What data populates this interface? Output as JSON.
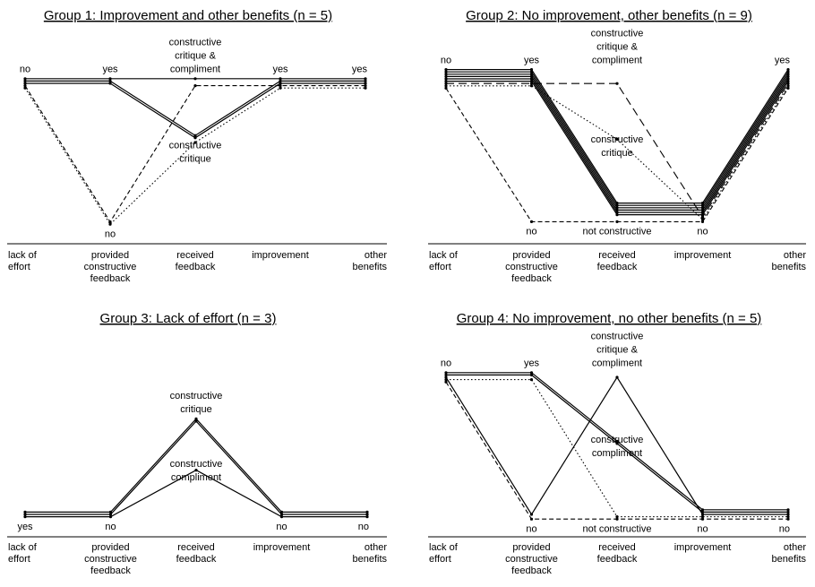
{
  "chart_data": [
    {
      "type": "line",
      "title": "Group 1: Improvement and other benefits (n = 5)",
      "categories": [
        "lack of\neffort",
        "provided\nconstructive\nfeedback",
        "received\nfeedback",
        "improvement",
        "other\nbenefits"
      ],
      "level_labels": [
        {
          "cat": 0,
          "text": "no",
          "pos": "top"
        },
        {
          "cat": 1,
          "text": "yes",
          "pos": "top"
        },
        {
          "cat": 1,
          "text": "no",
          "pos": "bottom"
        },
        {
          "cat": 2,
          "text": "constructive\ncritique &\ncompliment",
          "pos": "top"
        },
        {
          "cat": 2,
          "text": "constructive\ncritique",
          "pos": "mid"
        },
        {
          "cat": 3,
          "text": "yes",
          "pos": "top"
        },
        {
          "cat": 4,
          "text": "yes",
          "pos": "top"
        }
      ],
      "series": [
        {
          "style": "solid",
          "values": [
            1,
            1,
            1,
            1,
            1
          ]
        },
        {
          "style": "solid",
          "values": [
            1,
            1,
            0.6,
            1,
            1
          ]
        },
        {
          "style": "solid",
          "values": [
            1,
            1,
            0.6,
            1,
            1
          ]
        },
        {
          "style": "dashed",
          "values": [
            1,
            0,
            1,
            1,
            1
          ]
        },
        {
          "style": "dotted",
          "values": [
            1,
            0,
            0.6,
            1,
            1
          ]
        }
      ]
    },
    {
      "type": "line",
      "title": "Group 2: No improvement, other benefits (n = 9)",
      "categories": [
        "lack of\neffort",
        "provided\nconstructive\nfeedback",
        "received\nfeedback",
        "improvement",
        "other\nbenefits"
      ],
      "level_labels": [
        {
          "cat": 0,
          "text": "no",
          "pos": "top"
        },
        {
          "cat": 1,
          "text": "yes",
          "pos": "top"
        },
        {
          "cat": 1,
          "text": "no",
          "pos": "bottom"
        },
        {
          "cat": 2,
          "text": "constructive\ncritique &\ncompliment",
          "pos": "top"
        },
        {
          "cat": 2,
          "text": "constructive\ncritique",
          "pos": "mid"
        },
        {
          "cat": 2,
          "text": "not constructive",
          "pos": "bottom"
        },
        {
          "cat": 3,
          "text": "no",
          "pos": "bottom"
        },
        {
          "cat": 4,
          "text": "yes",
          "pos": "top"
        }
      ],
      "series": [
        {
          "style": "solid",
          "values": [
            1,
            1,
            0,
            0,
            1
          ]
        },
        {
          "style": "solid",
          "values": [
            1,
            1,
            0,
            0,
            1
          ]
        },
        {
          "style": "solid",
          "values": [
            1,
            1,
            0,
            0,
            1
          ]
        },
        {
          "style": "solid",
          "values": [
            1,
            1,
            0,
            0,
            1
          ]
        },
        {
          "style": "solid",
          "values": [
            1,
            1,
            0,
            0,
            1
          ]
        },
        {
          "style": "solid",
          "values": [
            1,
            1,
            0,
            0,
            1
          ]
        },
        {
          "style": "longdash",
          "values": [
            1,
            1,
            1,
            0,
            1
          ]
        },
        {
          "style": "dotted",
          "values": [
            1,
            1,
            0.6,
            0,
            1
          ]
        },
        {
          "style": "dashed",
          "values": [
            1,
            0,
            0,
            0,
            1
          ]
        }
      ]
    },
    {
      "type": "line",
      "title": "Group 3: Lack of effort (n = 3)",
      "categories": [
        "lack of\neffort",
        "provided\nconstructive\nfeedback",
        "received\nfeedback",
        "improvement",
        "other\nbenefits"
      ],
      "level_labels": [
        {
          "cat": 0,
          "text": "yes",
          "pos": "bottom"
        },
        {
          "cat": 1,
          "text": "no",
          "pos": "bottom"
        },
        {
          "cat": 2,
          "text": "constructive\ncritique",
          "pos": "top"
        },
        {
          "cat": 2,
          "text": "constructive\ncompliment",
          "pos": "mid"
        },
        {
          "cat": 3,
          "text": "no",
          "pos": "bottom"
        },
        {
          "cat": 4,
          "text": "no",
          "pos": "bottom"
        }
      ],
      "series": [
        {
          "style": "solid",
          "values": [
            0,
            0,
            1,
            0,
            0
          ]
        },
        {
          "style": "solid",
          "values": [
            0,
            0,
            1,
            0,
            0
          ]
        },
        {
          "style": "solid",
          "values": [
            0,
            0,
            0.5,
            0,
            0
          ]
        }
      ]
    },
    {
      "type": "line",
      "title": "Group 4: No improvement, no other benefits (n = 5)",
      "categories": [
        "lack of\neffort",
        "provided\nconstructive\nfeedback",
        "received\nfeedback",
        "improvement",
        "other\nbenefits"
      ],
      "level_labels": [
        {
          "cat": 0,
          "text": "no",
          "pos": "top"
        },
        {
          "cat": 1,
          "text": "yes",
          "pos": "top"
        },
        {
          "cat": 1,
          "text": "no",
          "pos": "bottom"
        },
        {
          "cat": 2,
          "text": "constructive\ncritique &\ncompliment",
          "pos": "top"
        },
        {
          "cat": 2,
          "text": "constructive\ncompliment",
          "pos": "mid"
        },
        {
          "cat": 2,
          "text": "not constructive",
          "pos": "bottom"
        },
        {
          "cat": 3,
          "text": "no",
          "pos": "bottom"
        },
        {
          "cat": 4,
          "text": "no",
          "pos": "bottom"
        }
      ],
      "series": [
        {
          "style": "solid",
          "values": [
            1,
            1,
            0.5,
            0,
            0
          ]
        },
        {
          "style": "solid",
          "values": [
            1,
            1,
            0.5,
            0,
            0
          ]
        },
        {
          "style": "solid",
          "values": [
            1,
            0,
            1,
            0,
            0
          ]
        },
        {
          "style": "dotted",
          "values": [
            1,
            1,
            0,
            0,
            0
          ]
        },
        {
          "style": "dashed",
          "values": [
            1,
            0,
            0,
            0,
            0
          ]
        }
      ]
    }
  ]
}
